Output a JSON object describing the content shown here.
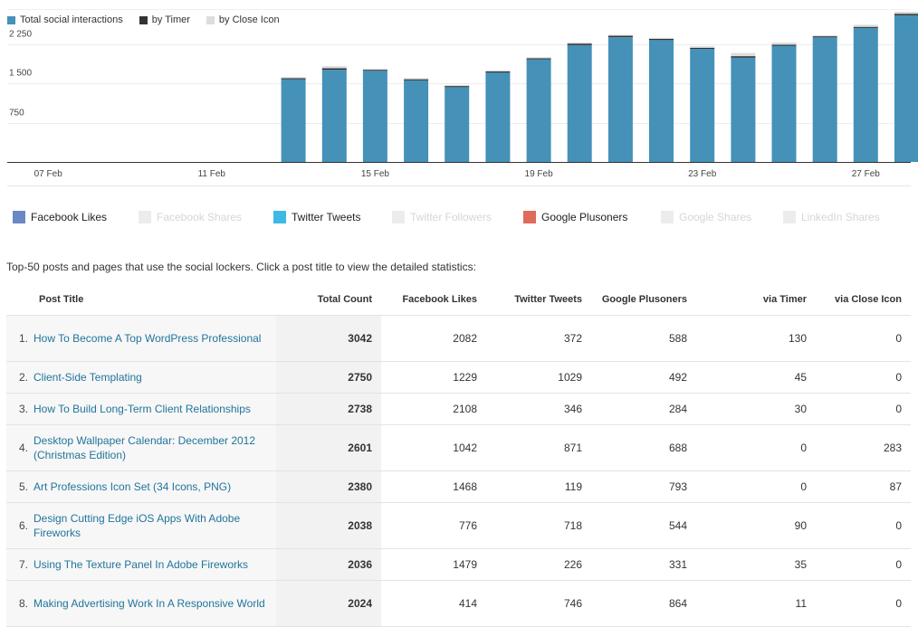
{
  "chart_data": {
    "type": "bar",
    "stacked": true,
    "series": [
      {
        "name": "Total social interactions",
        "color": "#4591b8"
      },
      {
        "name": "by Timer",
        "color": "#333333"
      },
      {
        "name": "by Close Icon",
        "color": "#dddddd"
      }
    ],
    "y_ticks": [
      "750",
      "1 500",
      "2 250"
    ],
    "y_tick_values": [
      750,
      1500,
      2250
    ],
    "ylim": [
      0,
      2920
    ],
    "x_ticks": [
      "07 Feb",
      "11 Feb",
      "15 Feb",
      "19 Feb",
      "23 Feb",
      "27 Feb"
    ],
    "x_tick_days": [
      7,
      11,
      15,
      19,
      23,
      27
    ],
    "x_range": [
      6,
      28.1
    ],
    "grid": true,
    "legend_position": "top-left",
    "days": [
      13,
      14,
      15,
      16,
      17,
      18,
      19,
      20,
      21,
      22,
      23,
      24,
      25,
      26,
      27,
      28
    ],
    "values": [
      [
        1580,
        20,
        20
      ],
      [
        1760,
        30,
        40
      ],
      [
        1740,
        20,
        20
      ],
      [
        1560,
        20,
        20
      ],
      [
        1430,
        20,
        20
      ],
      [
        1710,
        20,
        20
      ],
      [
        1960,
        20,
        20
      ],
      [
        2230,
        30,
        20
      ],
      [
        2380,
        30,
        20
      ],
      [
        2330,
        20,
        20
      ],
      [
        2160,
        20,
        30
      ],
      [
        1990,
        30,
        60
      ],
      [
        2220,
        20,
        40
      ],
      [
        2380,
        20,
        20
      ],
      [
        2560,
        20,
        40
      ],
      [
        2800,
        30,
        40
      ]
    ]
  },
  "networks": [
    {
      "label": "Facebook Likes",
      "color": "#6b88c4",
      "active": true
    },
    {
      "label": "Facebook Shares",
      "color": "#ececec",
      "active": false
    },
    {
      "label": "Twitter Tweets",
      "color": "#3db9e6",
      "active": true
    },
    {
      "label": "Twitter Followers",
      "color": "#ececec",
      "active": false
    },
    {
      "label": "Google Plusoners",
      "color": "#df6b5c",
      "active": true
    },
    {
      "label": "Google Shares",
      "color": "#ececec",
      "active": false
    },
    {
      "label": "LinkedIn Shares",
      "color": "#ececec",
      "active": false
    }
  ],
  "intro": "Top-50 posts and pages that use the social lockers. Click a post title to view the detailed statistics:",
  "table": {
    "headers": {
      "title": "Post Title",
      "total": "Total Count",
      "fb": "Facebook Likes",
      "tw": "Twitter Tweets",
      "gp": "Google Plusoners",
      "timer": "via Timer",
      "close": "via Close Icon"
    },
    "rows": [
      {
        "num": "1.",
        "title": "How To Become A Top WordPress Professional",
        "total": "3042",
        "fb": "2082",
        "tw": "372",
        "gp": "588",
        "timer": "130",
        "close": "0"
      },
      {
        "num": "2.",
        "title": "Client-Side Templating",
        "total": "2750",
        "fb": "1229",
        "tw": "1029",
        "gp": "492",
        "timer": "45",
        "close": "0"
      },
      {
        "num": "3.",
        "title": "How To Build Long-Term Client Relationships",
        "total": "2738",
        "fb": "2108",
        "tw": "346",
        "gp": "284",
        "timer": "30",
        "close": "0"
      },
      {
        "num": "4.",
        "title": "Desktop Wallpaper Calendar: December 2012 (Christmas Edition)",
        "total": "2601",
        "fb": "1042",
        "tw": "871",
        "gp": "688",
        "timer": "0",
        "close": "283"
      },
      {
        "num": "5.",
        "title": "Art Professions Icon Set (34 Icons, PNG)",
        "total": "2380",
        "fb": "1468",
        "tw": "119",
        "gp": "793",
        "timer": "0",
        "close": "87"
      },
      {
        "num": "6.",
        "title": "Design Cutting Edge iOS Apps With Adobe Fireworks",
        "total": "2038",
        "fb": "776",
        "tw": "718",
        "gp": "544",
        "timer": "90",
        "close": "0"
      },
      {
        "num": "7.",
        "title": "Using The Texture Panel In Adobe Fireworks",
        "total": "2036",
        "fb": "1479",
        "tw": "226",
        "gp": "331",
        "timer": "35",
        "close": "0"
      },
      {
        "num": "8.",
        "title": "Making Advertising Work In A Responsive World",
        "total": "2024",
        "fb": "414",
        "tw": "746",
        "gp": "864",
        "timer": "11",
        "close": "0"
      }
    ]
  }
}
